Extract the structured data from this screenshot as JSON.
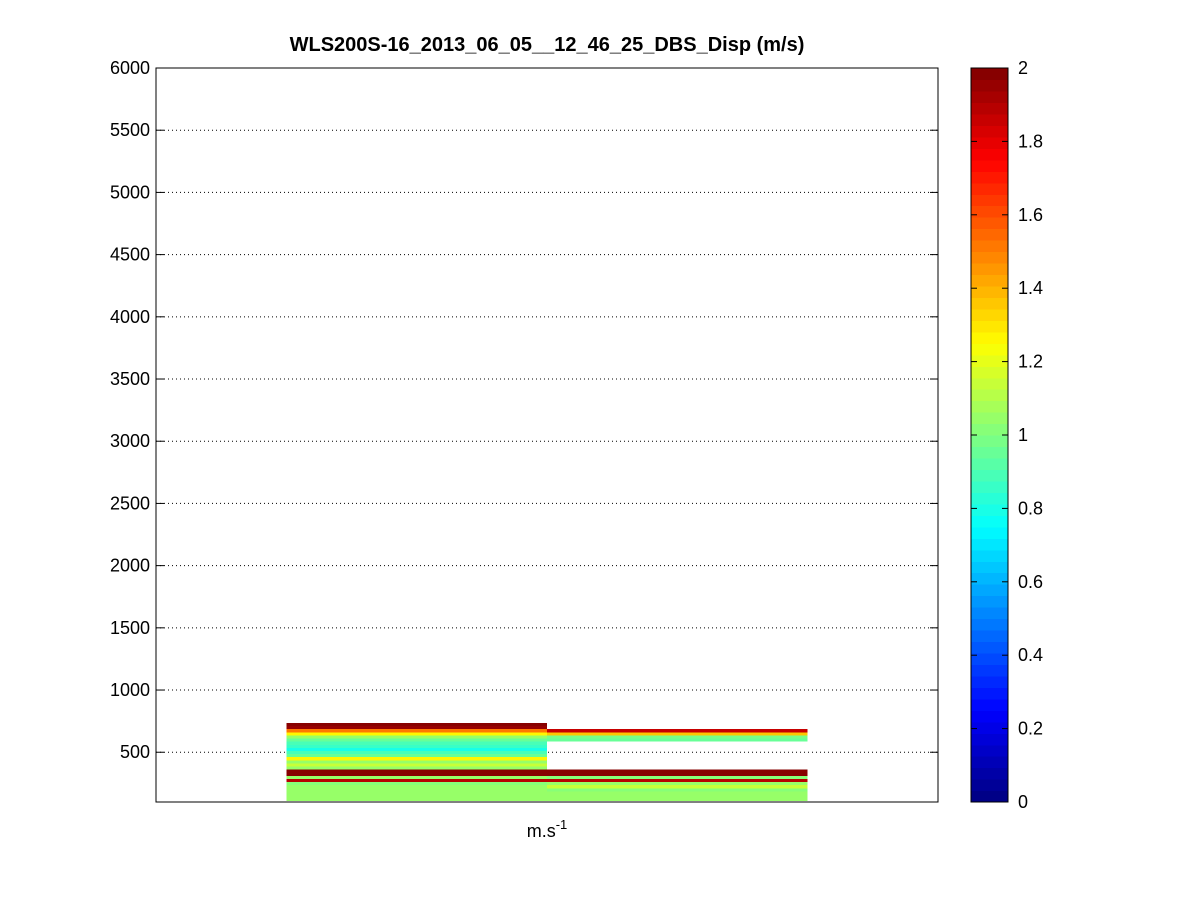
{
  "chart_data": {
    "type": "heatmap",
    "title": "WLS200S-16_2013_06_05__12_46_25_DBS_Disp (m/s)",
    "xlabel_base": "m.s",
    "xlabel_superscript": "-1",
    "ylabel": "",
    "ylim": [
      100,
      6000
    ],
    "yticks": [
      500,
      1000,
      1500,
      2000,
      2500,
      3000,
      3500,
      4000,
      4500,
      5000,
      5500,
      6000
    ],
    "grid": "horizontal dotted",
    "colormap": "jet",
    "colorbar": {
      "clim": [
        0,
        2
      ],
      "ticks": [
        0,
        0.2,
        0.4,
        0.6,
        0.8,
        1,
        1.2,
        1.4,
        1.6,
        1.8,
        2
      ],
      "tick_labels": [
        "0",
        "0.2",
        "0.4",
        "0.6",
        "0.8",
        "1",
        "1.2",
        "1.4",
        "1.6",
        "1.8",
        "2"
      ],
      "levels": 64
    },
    "columns": [
      {
        "x_range": [
          0.5,
          1.5
        ],
        "cells": [
          {
            "alt": [
              110,
              135
            ],
            "value": 1.05
          },
          {
            "alt": [
              135,
              160
            ],
            "value": 1.05
          },
          {
            "alt": [
              160,
              185
            ],
            "value": 1.05
          },
          {
            "alt": [
              185,
              210
            ],
            "value": 1.05
          },
          {
            "alt": [
              210,
              235
            ],
            "value": 1.05
          },
          {
            "alt": [
              235,
              260
            ],
            "value": 1.02
          },
          {
            "alt": [
              260,
              285
            ],
            "value": 1.9
          },
          {
            "alt": [
              285,
              310
            ],
            "value": 1.05
          },
          {
            "alt": [
              310,
              335
            ],
            "value": 2.0
          },
          {
            "alt": [
              335,
              360
            ],
            "value": 2.0
          },
          {
            "alt": [
              360,
              385
            ],
            "value": 1.05
          },
          {
            "alt": [
              385,
              410
            ],
            "value": 1.15
          },
          {
            "alt": [
              410,
              435
            ],
            "value": 1.05
          },
          {
            "alt": [
              435,
              460
            ],
            "value": 1.25
          },
          {
            "alt": [
              460,
              485
            ],
            "value": 0.95
          },
          {
            "alt": [
              485,
              510
            ],
            "value": 0.9
          },
          {
            "alt": [
              510,
              535
            ],
            "value": 0.8
          },
          {
            "alt": [
              535,
              560
            ],
            "value": 0.85
          },
          {
            "alt": [
              560,
              585
            ],
            "value": 0.9
          },
          {
            "alt": [
              585,
              610
            ],
            "value": 0.95
          },
          {
            "alt": [
              610,
              635
            ],
            "value": 1.05
          },
          {
            "alt": [
              635,
              660
            ],
            "value": 1.25
          },
          {
            "alt": [
              660,
              685
            ],
            "value": 1.5
          },
          {
            "alt": [
              685,
              710
            ],
            "value": 1.95
          },
          {
            "alt": [
              710,
              735
            ],
            "value": 2.0
          }
        ]
      },
      {
        "x_range": [
          1.5,
          2.5
        ],
        "cells": [
          {
            "alt": [
              110,
              135
            ],
            "value": 1.05
          },
          {
            "alt": [
              135,
              160
            ],
            "value": 1.05
          },
          {
            "alt": [
              160,
              185
            ],
            "value": 1.05
          },
          {
            "alt": [
              185,
              210
            ],
            "value": 1.02
          },
          {
            "alt": [
              210,
              235
            ],
            "value": 1.15
          },
          {
            "alt": [
              235,
              260
            ],
            "value": 1.05
          },
          {
            "alt": [
              260,
              285
            ],
            "value": 1.9
          },
          {
            "alt": [
              285,
              310
            ],
            "value": 1.0
          },
          {
            "alt": [
              310,
              335
            ],
            "value": 2.0
          },
          {
            "alt": [
              335,
              360
            ],
            "value": 2.0
          },
          {
            "alt": [
              585,
              610
            ],
            "value": 0.95
          },
          {
            "alt": [
              610,
              635
            ],
            "value": 0.98
          },
          {
            "alt": [
              635,
              660
            ],
            "value": 1.35
          },
          {
            "alt": [
              660,
              685
            ],
            "value": 1.85
          }
        ]
      }
    ],
    "xlim": [
      0,
      3
    ]
  }
}
